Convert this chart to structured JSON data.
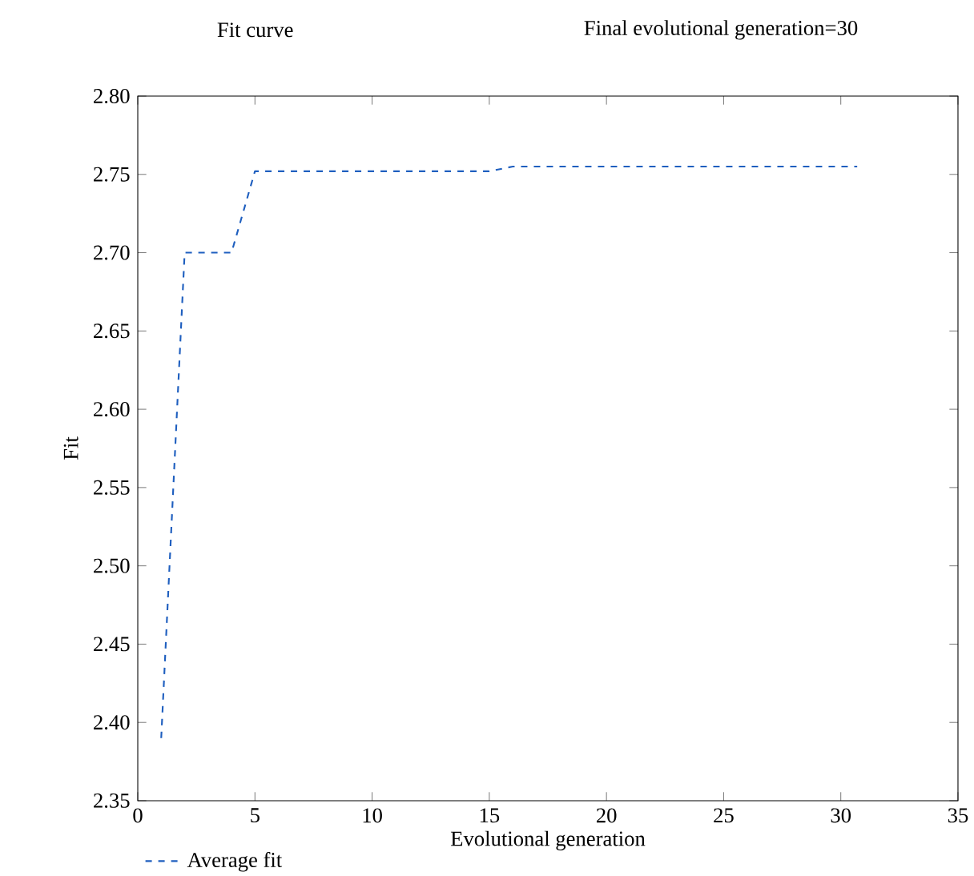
{
  "chart_data": {
    "type": "line",
    "title": "Fit curve",
    "subtitle": "Final evolutional generation=30",
    "xlabel": "Evolutional generation",
    "ylabel": "Fit",
    "xlim": [
      0,
      35
    ],
    "ylim": [
      2.35,
      2.8
    ],
    "xticks": [
      0,
      5,
      10,
      15,
      20,
      25,
      30,
      35
    ],
    "yticks": [
      2.35,
      {
        "value": 2.4,
        "label": "2.40"
      },
      2.45,
      {
        "value": 2.5,
        "label": "2.50"
      },
      2.55,
      {
        "value": 2.6,
        "label": "2.60"
      },
      2.65,
      {
        "value": 2.7,
        "label": "2.70"
      },
      2.75,
      {
        "value": 2.8,
        "label": "2.80"
      }
    ],
    "legend": "bottom",
    "line_style": "dashed",
    "marker": "none",
    "grid": false,
    "series": [
      {
        "name": "Average fit",
        "color": "#1f5fbf",
        "x": [
          1,
          2,
          4,
          5,
          15,
          16,
          30.7
        ],
        "values": [
          2.39,
          2.7,
          2.7,
          2.752,
          2.752,
          2.755,
          2.755
        ]
      }
    ]
  }
}
